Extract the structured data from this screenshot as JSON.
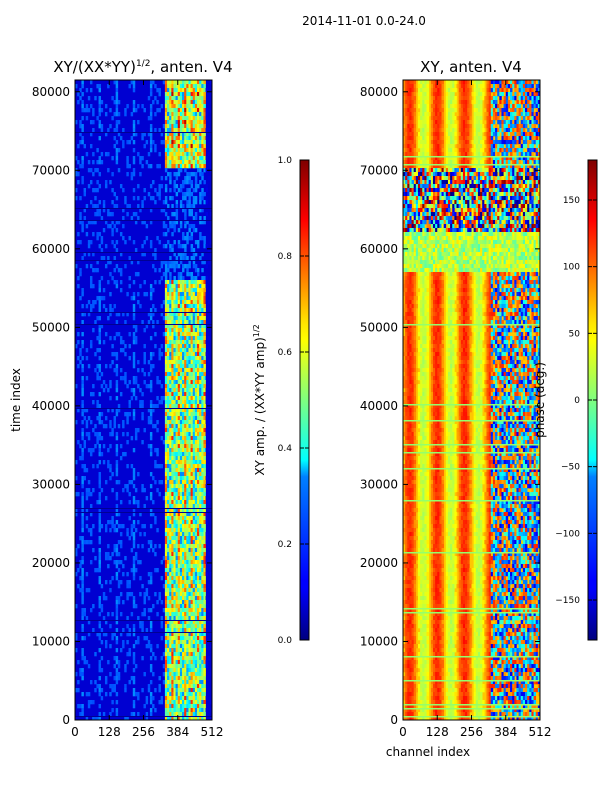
{
  "figure": {
    "suptitle": "2014-11-01 0.0-24.0"
  },
  "chart_data": [
    {
      "type": "heatmap",
      "title": "XY/(XX*YY)^1/2, anten. V4",
      "title_main": "XY/(XX*YY)",
      "title_sup": "1/2",
      "title_tail": ", anten. V4",
      "xlabel": "",
      "ylabel": "time index",
      "xlim": [
        0,
        512
      ],
      "ylim": [
        0,
        81500
      ],
      "xticks": [
        0,
        128,
        256,
        384,
        512
      ],
      "yticks": [
        0,
        10000,
        20000,
        30000,
        40000,
        50000,
        60000,
        70000,
        80000
      ],
      "colormap": "jet",
      "colorbar": {
        "label": "XY amp. / (XX*YY amp)^1/2",
        "label_main": "XY amp. / (XX*YY amp)",
        "label_sup": "1/2",
        "range": [
          0.0,
          1.0
        ],
        "ticks": [
          "0.0",
          "0.2",
          "0.4",
          "0.6",
          "0.8",
          "1.0"
        ]
      }
    },
    {
      "type": "heatmap",
      "title": "XY, anten. V4",
      "xlabel": "channel index",
      "ylabel": "",
      "xlim": [
        0,
        512
      ],
      "ylim": [
        0,
        81500
      ],
      "xticks": [
        0,
        128,
        256,
        384,
        512
      ],
      "yticks": [
        0,
        10000,
        20000,
        30000,
        40000,
        50000,
        60000,
        70000,
        80000
      ],
      "colormap": "jet",
      "colorbar": {
        "label": "phase (deg.)",
        "range": [
          -180,
          180
        ],
        "ticks": [
          "−150",
          "−100",
          "−50",
          "0",
          "50",
          "100",
          "150"
        ]
      }
    }
  ]
}
